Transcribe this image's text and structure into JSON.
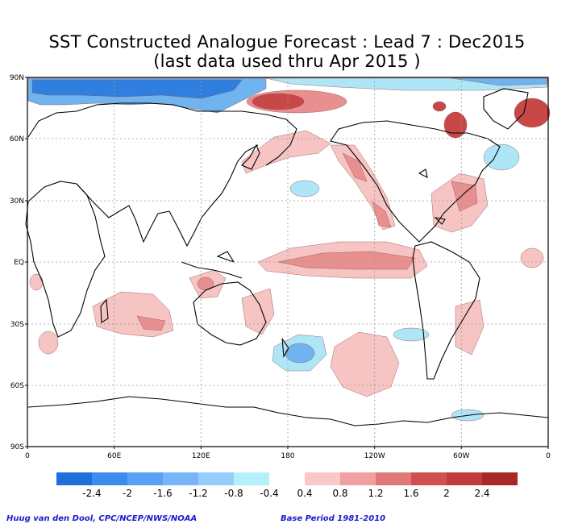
{
  "title": {
    "line1": "SST Constructed Analogue Forecast : Lead 7 : Dec2015",
    "line2": "(last data used thru Apr 2015 )"
  },
  "axes": {
    "lat_labels": [
      "90N",
      "60N",
      "30N",
      "EQ",
      "30S",
      "60S",
      "90S"
    ],
    "lon_labels": [
      "0",
      "60E",
      "120E",
      "180",
      "120W",
      "60W",
      "0"
    ]
  },
  "colorbar": {
    "negative_colors": [
      "#1e6fdc",
      "#3c8cf0",
      "#5aa0f5",
      "#78b4f8",
      "#96cdfa",
      "#b4f0fa"
    ],
    "positive_colors": [
      "#fac8c8",
      "#f0a0a0",
      "#e07878",
      "#d05050",
      "#c03c3c",
      "#a82828"
    ],
    "negative_labels": [
      "-2.4",
      "-2",
      "-1.6",
      "-1.2",
      "-0.8",
      "-0.4"
    ],
    "positive_labels": [
      "0.4",
      "0.8",
      "1.2",
      "1.6",
      "2",
      "2.4"
    ]
  },
  "credits": {
    "left": "Huug van den Dool, CPC/NCEP/NWS/NOAA",
    "right": "Base Period 1981-2010"
  },
  "colors": {
    "warm_light": "#f7c4c4",
    "warm_mid": "#e89090",
    "warm_strong": "#c84848",
    "cool_light": "#aee6f7",
    "cool_mid": "#6fb3ef",
    "cool_strong": "#2f7fe0",
    "coast": "#000000",
    "grid": "#9a9a9a"
  }
}
